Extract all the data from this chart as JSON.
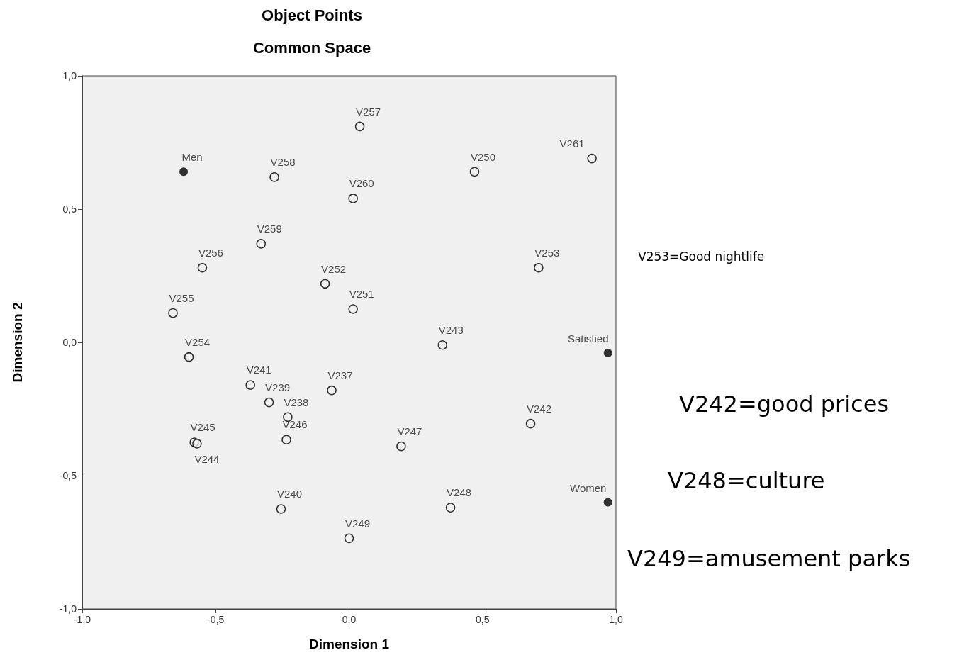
{
  "chart_data": {
    "type": "scatter",
    "title": "Object Points",
    "subtitle": "Common Space",
    "xlabel": "Dimension 1",
    "ylabel": "Dimension 2",
    "xlim": [
      -1,
      1
    ],
    "ylim": [
      -1,
      1
    ],
    "xticks": [
      {
        "value": -1,
        "label": "-1,0"
      },
      {
        "value": -0.5,
        "label": "-0,5"
      },
      {
        "value": 0,
        "label": "0,0"
      },
      {
        "value": 0.5,
        "label": "0,5"
      },
      {
        "value": 1,
        "label": "1,0"
      }
    ],
    "yticks": [
      {
        "value": -1,
        "label": "-1,0"
      },
      {
        "value": -0.5,
        "label": "-0,5"
      },
      {
        "value": 0,
        "label": "0,0"
      },
      {
        "value": 0.5,
        "label": "0,5"
      },
      {
        "value": 1,
        "label": "1,0"
      }
    ],
    "grid": false,
    "marker": "circle",
    "series": [
      {
        "color": "#000000",
        "x": [
          0.04,
          -0.28,
          0.015,
          0.47,
          0.91,
          -0.33,
          -0.55,
          -0.09,
          0.71,
          0.015,
          -0.66,
          0.35,
          -0.6,
          -0.37,
          -0.065,
          -0.3,
          -0.23,
          0.68,
          -0.58,
          -0.57,
          -0.235,
          0.195,
          0.38,
          -0.255,
          0.0
        ],
        "values": [
          0.81,
          0.62,
          0.54,
          0.64,
          0.69,
          0.37,
          0.28,
          0.22,
          0.28,
          0.125,
          0.11,
          -0.01,
          -0.055,
          -0.16,
          -0.18,
          -0.225,
          -0.28,
          -0.305,
          -0.375,
          -0.38,
          -0.365,
          -0.39,
          -0.62,
          -0.625,
          -0.735
        ],
        "value_labels": [
          "V257",
          "V258",
          "V260",
          "V250",
          "V261",
          "V259",
          "V256",
          "V252",
          "V253",
          "V251",
          "V255",
          "V243",
          "V254",
          "V241",
          "V237",
          "V239",
          "V238",
          "V242",
          "V245",
          "V244",
          "V246",
          "V247",
          "V248",
          "V240",
          "V249"
        ]
      },
      {
        "color": "#000000",
        "x": [
          -0.62,
          0.97,
          0.97
        ],
        "values": [
          0.64,
          -0.04,
          -0.6
        ],
        "value_labels": [
          "Men",
          "Satisfied",
          "Women"
        ]
      }
    ],
    "annotations": [
      "V253=Good nightlife",
      "V242=good prices",
      "V248=culture",
      "V249=amusement parks"
    ]
  }
}
